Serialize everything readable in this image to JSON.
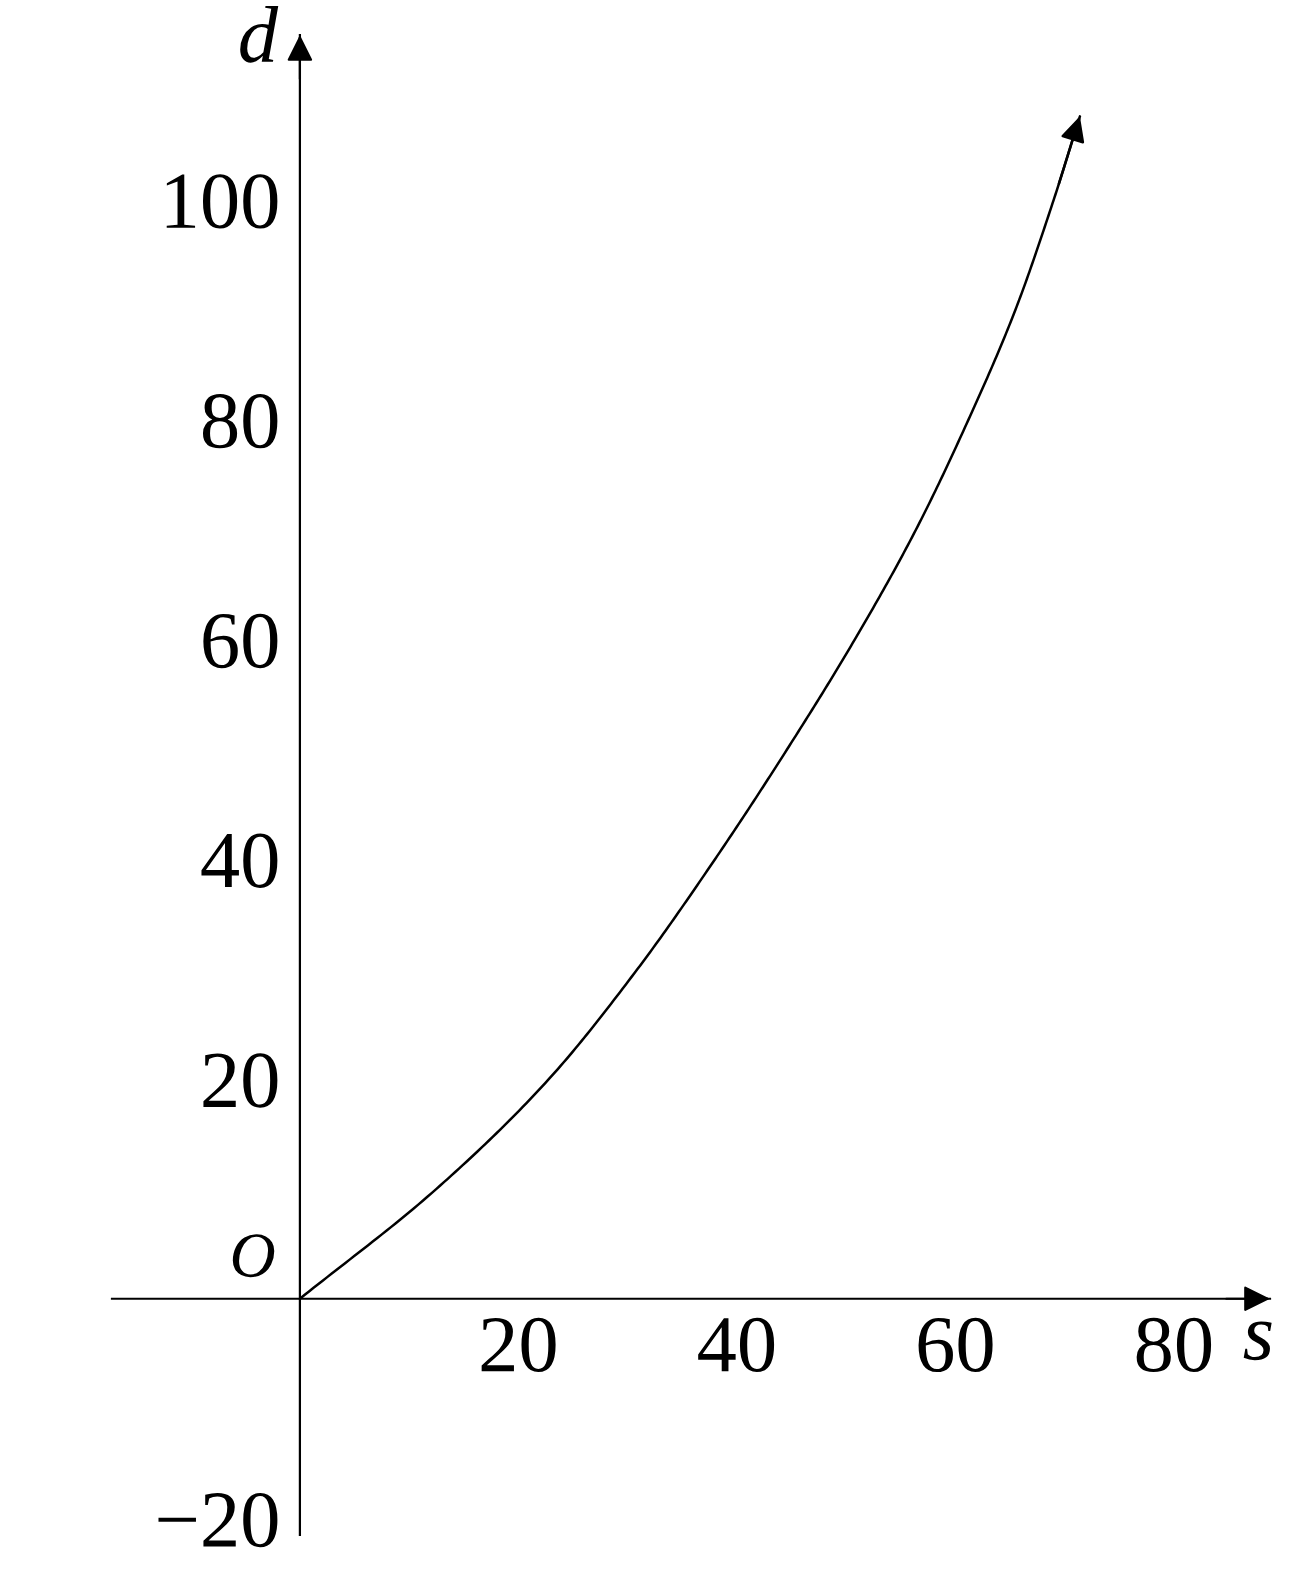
{
  "chart_data": {
    "type": "line",
    "xlabel": "s",
    "ylabel": "d",
    "x": [
      0,
      12.5,
      22.8,
      30.9,
      38.0,
      44.6,
      50.8,
      56.4,
      61.2,
      65.5,
      69.0,
      71.4
    ],
    "series": [
      {
        "color": "#000000",
        "values": [
          0,
          10,
          20,
          30,
          40,
          50,
          60,
          70,
          80,
          90,
          100,
          107.6
        ]
      }
    ],
    "xlim": [
      -17.2,
      88.8
    ],
    "ylim": [
      -21.5,
      115
    ],
    "xticks": [
      20,
      40,
      60,
      80
    ],
    "yticks": [
      {
        "value": -20,
        "label": "−20"
      },
      20,
      40,
      60,
      80,
      100
    ],
    "annotations": [
      {
        "text": "O",
        "x": 0,
        "y": 0
      }
    ]
  }
}
